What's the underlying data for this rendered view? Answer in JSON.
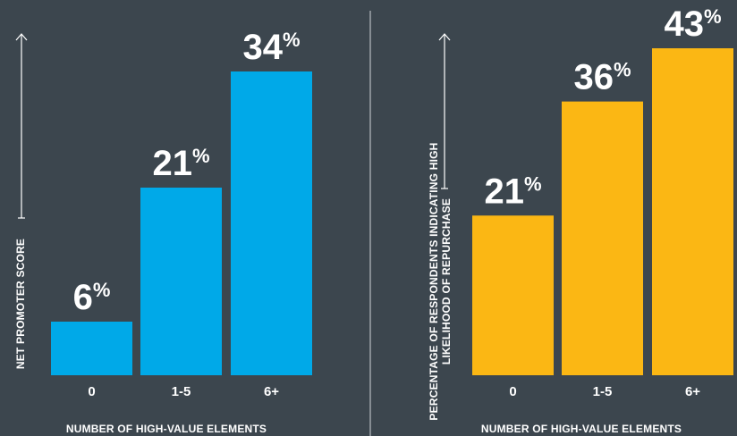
{
  "colors": {
    "background": "#3c464e",
    "panel_left_bar": "#00a9e8",
    "panel_right_bar": "#fbb714",
    "text": "#ffffff",
    "divider": "#cfd4d8"
  },
  "chart_data": [
    {
      "type": "bar",
      "categories": [
        "0",
        "1-5",
        "6+"
      ],
      "values": [
        6,
        21,
        34
      ],
      "value_labels": [
        "6",
        "21",
        "34"
      ],
      "unit_suffix": "%",
      "xlabel": "NUMBER OF HIGH-VALUE ELEMENTS",
      "ylabel": [
        "NET PROMOTER SCORE"
      ],
      "ylim": [
        0,
        40
      ],
      "grid": false,
      "legend": "none",
      "bar_color": "#00a9e8"
    },
    {
      "type": "bar",
      "categories": [
        "0",
        "1-5",
        "6+"
      ],
      "values": [
        21,
        36,
        43
      ],
      "value_labels": [
        "21",
        "36",
        "43"
      ],
      "unit_suffix": "%",
      "xlabel": "NUMBER OF HIGH-VALUE ELEMENTS",
      "ylabel": [
        "PERCENTAGE OF RESPONDENTS INDICATING HIGH",
        "LIKELIHOOD OF REPURCHASE"
      ],
      "ylim": [
        0,
        47
      ],
      "grid": false,
      "legend": "none",
      "bar_color": "#fbb714"
    }
  ]
}
